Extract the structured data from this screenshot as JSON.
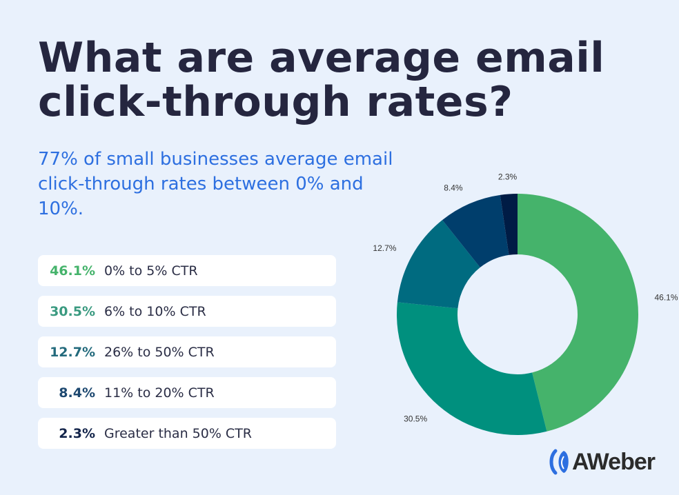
{
  "title": "What are average email click-through rates?",
  "subtitle": "77% of small businesses average email click-through rates between 0% and 10%.",
  "legend": [
    {
      "value": "46.1%",
      "label": "0% to 5% CTR",
      "color": "#45b36b"
    },
    {
      "value": "30.5%",
      "label": "6% to 10% CTR",
      "color": "#3a9a80"
    },
    {
      "value": "12.7%",
      "label": "26% to 50% CTR",
      "color": "#236a7c"
    },
    {
      "value": "8.4%",
      "label": "11% to 20% CTR",
      "color": "#1d4870"
    },
    {
      "value": "2.3%",
      "label": "Greater than 50% CTR",
      "color": "#13244a"
    }
  ],
  "logo": "AWeber",
  "chart_data": {
    "type": "pie",
    "donut": true,
    "categories": [
      "0% to 5% CTR",
      "6% to 10% CTR",
      "26% to 50% CTR",
      "11% to 20% CTR",
      "Greater than 50% CTR"
    ],
    "values": [
      46.1,
      30.5,
      12.7,
      8.4,
      2.3
    ],
    "data_labels": [
      "46.1%",
      "30.5%",
      "12.7%",
      "8.4%",
      "2.3%"
    ],
    "colors": [
      "#45b36b",
      "#00907e",
      "#006b80",
      "#003e6c",
      "#001c45"
    ]
  }
}
